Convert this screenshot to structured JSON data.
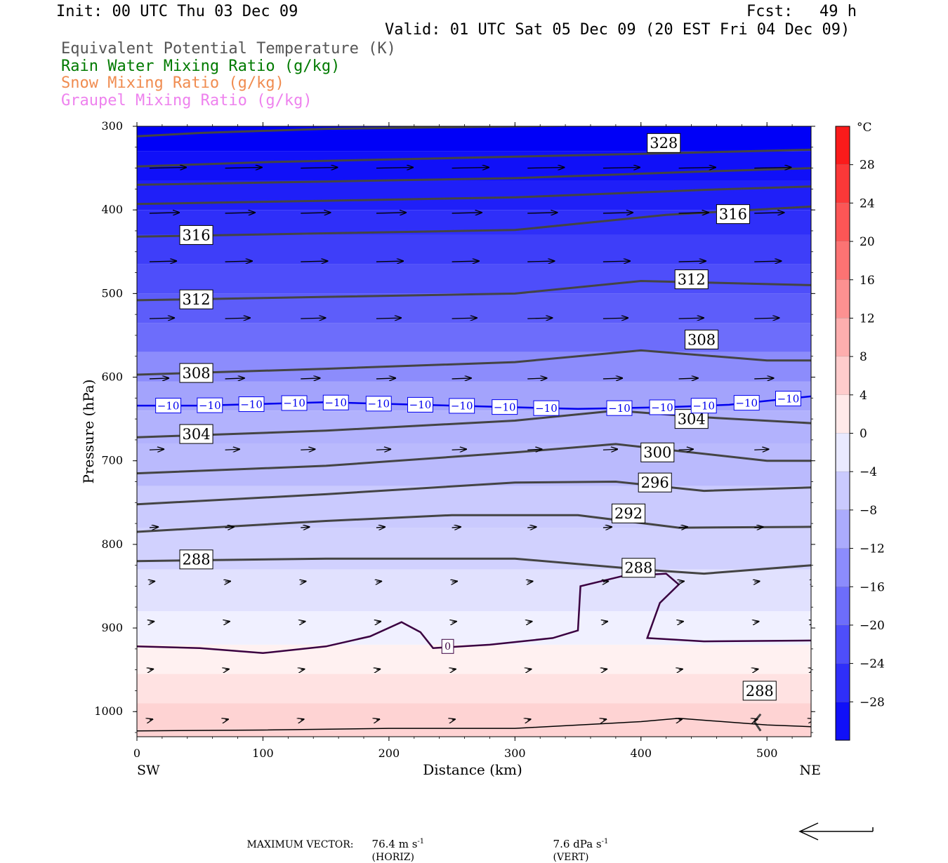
{
  "header": {
    "init": "Init: 00 UTC Thu 03 Dec 09",
    "fcst_label": "Fcst:",
    "fcst_value": "49 h",
    "valid": "Valid: 01 UTC Sat 05 Dec 09 (20 EST Fri 04 Dec 09)",
    "fields": [
      {
        "text": "Equivalent Potential Temperature (K)",
        "color": "#555555"
      },
      {
        "text": "Rain Water Mixing Ratio (g/kg)",
        "color": "#007a00"
      },
      {
        "text": "Snow Mixing Ratio (g/kg)",
        "color": "#f08c50"
      },
      {
        "text": "Graupel Mixing Ratio (g/kg)",
        "color": "#ee82ee"
      }
    ]
  },
  "footer": {
    "label": "MAXIMUM VECTOR:",
    "horiz_value": "76.4 m s",
    "horiz_suffix": "(HORIZ)",
    "vert_value": "7.6 dPa s",
    "vert_suffix": "(VERT)",
    "exponent": "-1"
  },
  "chart_data": {
    "type": "heatmap",
    "xlabel": "Distance (km)",
    "ylabel": "Pressure (hPa)",
    "xlim": [
      0,
      535
    ],
    "ylim": [
      1030,
      300
    ],
    "x_ticks": [
      0,
      100,
      200,
      300,
      400,
      500
    ],
    "y_ticks": [
      300,
      400,
      500,
      600,
      700,
      800,
      900,
      1000
    ],
    "x_end_labels": {
      "left": "SW",
      "right": "NE"
    },
    "colorbar": {
      "unit": "°C",
      "labels": [
        28,
        24,
        20,
        16,
        12,
        8,
        4,
        0,
        -4,
        -8,
        -12,
        -16,
        -20,
        -24,
        -28
      ],
      "range": [
        -32,
        32
      ],
      "step": 4
    },
    "temperature_bands": [
      {
        "p_top": 300,
        "p_bottom": 330,
        "temp": -32
      },
      {
        "p_top": 330,
        "p_bottom": 365,
        "temp": -30
      },
      {
        "p_top": 365,
        "p_bottom": 400,
        "temp": -28
      },
      {
        "p_top": 400,
        "p_bottom": 430,
        "temp": -26
      },
      {
        "p_top": 430,
        "p_bottom": 465,
        "temp": -24
      },
      {
        "p_top": 465,
        "p_bottom": 500,
        "temp": -22
      },
      {
        "p_top": 500,
        "p_bottom": 535,
        "temp": -20
      },
      {
        "p_top": 535,
        "p_bottom": 570,
        "temp": -18
      },
      {
        "p_top": 570,
        "p_bottom": 605,
        "temp": -14
      },
      {
        "p_top": 605,
        "p_bottom": 640,
        "temp": -11
      },
      {
        "p_top": 640,
        "p_bottom": 680,
        "temp": -9
      },
      {
        "p_top": 680,
        "p_bottom": 730,
        "temp": -8
      },
      {
        "p_top": 730,
        "p_bottom": 780,
        "temp": -6
      },
      {
        "p_top": 780,
        "p_bottom": 830,
        "temp": -5
      },
      {
        "p_top": 830,
        "p_bottom": 880,
        "temp": -3
      },
      {
        "p_top": 880,
        "p_bottom": 920,
        "temp": -1
      },
      {
        "p_top": 920,
        "p_bottom": 955,
        "temp": 1
      },
      {
        "p_top": 955,
        "p_bottom": 990,
        "temp": 3
      },
      {
        "p_top": 990,
        "p_bottom": 1030,
        "temp": 5
      }
    ],
    "theta_e_contours": [
      {
        "label": "328",
        "points": [
          [
            0,
            312
          ],
          [
            50,
            308
          ],
          [
            150,
            303
          ],
          [
            300,
            300
          ],
          [
            450,
            297
          ],
          [
            535,
            293
          ]
        ],
        "label_at": [
          405,
          320
        ]
      },
      {
        "label": "",
        "points": [
          [
            0,
            348
          ],
          [
            100,
            343
          ],
          [
            250,
            338
          ],
          [
            400,
            333
          ],
          [
            535,
            328
          ]
        ]
      },
      {
        "label": "",
        "points": [
          [
            0,
            370
          ],
          [
            150,
            366
          ],
          [
            300,
            362
          ],
          [
            450,
            354
          ],
          [
            535,
            350
          ]
        ]
      },
      {
        "label": "",
        "points": [
          [
            0,
            393
          ],
          [
            150,
            389
          ],
          [
            300,
            385
          ],
          [
            450,
            376
          ],
          [
            535,
            372
          ]
        ]
      },
      {
        "label": "316",
        "points": [
          [
            0,
            432
          ],
          [
            150,
            428
          ],
          [
            300,
            424
          ],
          [
            420,
            406
          ],
          [
            535,
            396
          ]
        ],
        "label_at": [
          34,
          430
        ],
        "label_at2": [
          460,
          405
        ]
      },
      {
        "label": "312",
        "points": [
          [
            0,
            508
          ],
          [
            150,
            504
          ],
          [
            300,
            500
          ],
          [
            400,
            485
          ],
          [
            535,
            490
          ]
        ],
        "label_at": [
          34,
          507
        ],
        "label_at2": [
          427,
          483
        ]
      },
      {
        "label": "308",
        "points": [
          [
            0,
            597
          ],
          [
            150,
            590
          ],
          [
            300,
            582
          ],
          [
            400,
            568
          ],
          [
            500,
            580
          ],
          [
            535,
            580
          ]
        ],
        "label_at": [
          34,
          595
        ],
        "label_at2": [
          435,
          555
        ]
      },
      {
        "label": "304",
        "points": [
          [
            0,
            672
          ],
          [
            150,
            664
          ],
          [
            300,
            652
          ],
          [
            380,
            640
          ],
          [
            450,
            648
          ],
          [
            535,
            655
          ]
        ],
        "label_at": [
          34,
          668
        ],
        "label_at2": [
          427,
          650
        ]
      },
      {
        "label": "300",
        "points": [
          [
            0,
            715
          ],
          [
            150,
            706
          ],
          [
            300,
            690
          ],
          [
            380,
            680
          ],
          [
            500,
            700
          ],
          [
            535,
            700
          ]
        ],
        "label_at": [
          400,
          690
        ]
      },
      {
        "label": "296",
        "points": [
          [
            0,
            752
          ],
          [
            150,
            740
          ],
          [
            300,
            726
          ],
          [
            380,
            725
          ],
          [
            450,
            736
          ],
          [
            535,
            732
          ]
        ],
        "label_at": [
          398,
          726
        ]
      },
      {
        "label": "292",
        "points": [
          [
            0,
            785
          ],
          [
            150,
            772
          ],
          [
            250,
            765
          ],
          [
            350,
            765
          ],
          [
            430,
            780
          ],
          [
            535,
            779
          ]
        ],
        "label_at": [
          377,
          763
        ]
      },
      {
        "label": "288",
        "points": [
          [
            0,
            820
          ],
          [
            150,
            817
          ],
          [
            300,
            817
          ],
          [
            400,
            830
          ],
          [
            450,
            835
          ],
          [
            535,
            825
          ]
        ],
        "label_at": [
          34,
          818
        ],
        "label_at2": [
          385,
          828
        ]
      }
    ],
    "theta_e_288_lower": {
      "label": "288",
      "points": [
        [
          495,
          1003
        ],
        [
          490,
          1012
        ],
        [
          495,
          1023
        ]
      ],
      "label_at": [
        495,
        975
      ]
    },
    "minus10_isotherm": {
      "label": "−10",
      "points": [
        [
          0,
          634
        ],
        [
          50,
          634
        ],
        [
          150,
          630
        ],
        [
          250,
          634
        ],
        [
          350,
          638
        ],
        [
          420,
          636
        ],
        [
          470,
          633
        ],
        [
          535,
          623
        ]
      ],
      "label_x": [
        26,
        59,
        92,
        126,
        159,
        193,
        226,
        259,
        293,
        326,
        384,
        418,
        451,
        485,
        518
      ]
    },
    "zero_isotherm": {
      "label": "0",
      "points": [
        [
          0,
          922
        ],
        [
          50,
          924
        ],
        [
          100,
          930
        ],
        [
          150,
          922
        ],
        [
          185,
          910
        ],
        [
          210,
          893
        ],
        [
          225,
          905
        ],
        [
          235,
          924
        ],
        [
          280,
          920
        ],
        [
          330,
          912
        ],
        [
          350,
          903
        ],
        [
          352,
          850
        ],
        [
          385,
          838
        ],
        [
          420,
          835
        ],
        [
          430,
          848
        ],
        [
          415,
          870
        ],
        [
          405,
          912
        ],
        [
          450,
          916
        ],
        [
          535,
          915
        ]
      ],
      "label_at": [
        242,
        922
      ]
    },
    "wind_rows": [
      {
        "p": 350,
        "len": 52
      },
      {
        "p": 404,
        "len": 42
      },
      {
        "p": 462,
        "len": 38
      },
      {
        "p": 530,
        "len": 35
      },
      {
        "p": 602,
        "len": 27
      },
      {
        "p": 687,
        "len": 20
      },
      {
        "p": 780,
        "len": 12
      },
      {
        "p": 845,
        "len": 7
      },
      {
        "p": 893,
        "len": 6
      },
      {
        "p": 950,
        "len": 5
      },
      {
        "p": 1010,
        "len": 4
      }
    ],
    "wind_x": [
      10,
      70,
      130,
      190,
      250,
      310,
      370,
      430,
      490,
      535
    ]
  }
}
